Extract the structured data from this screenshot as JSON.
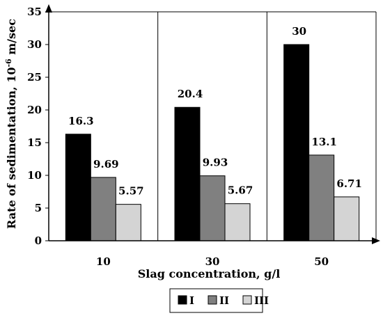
{
  "chart_data": {
    "type": "bar",
    "categories": [
      "10",
      "30",
      "50"
    ],
    "series": [
      {
        "name": "I",
        "values": [
          16.3,
          20.4,
          30
        ],
        "labels": [
          "16.3",
          "20.4",
          "30"
        ],
        "color": "#000000"
      },
      {
        "name": "II",
        "values": [
          9.69,
          9.93,
          13.1
        ],
        "labels": [
          "9.69",
          "9.93",
          "13.1"
        ],
        "color": "#808080"
      },
      {
        "name": "III",
        "values": [
          5.57,
          5.67,
          6.71
        ],
        "labels": [
          "5.57",
          "5.67",
          "6.71"
        ],
        "color": "#d4d4d4"
      }
    ],
    "xlabel": "Slag concentration, g/l",
    "ylabel": "Rate of sedimentation, 10",
    "ylabel_sup": "-6",
    "ylabel_unit": " m/sec",
    "ylim": [
      0,
      35
    ],
    "yticks": [
      "0",
      "5",
      "10",
      "15",
      "20",
      "25",
      "30",
      "35"
    ],
    "grid": "vertical-lines-between-groups",
    "legend": "bottom-center"
  }
}
